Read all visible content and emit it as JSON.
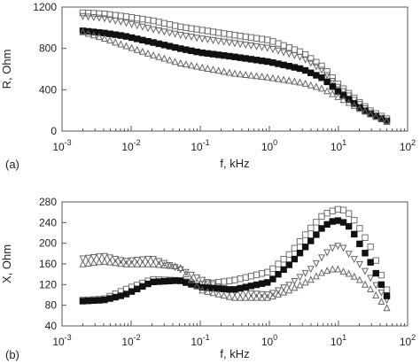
{
  "chart_data": [
    {
      "type": "scatter",
      "panel_label": "(a)",
      "xlabel": "f, kHz",
      "ylabel": "R, Ohm",
      "xscale": "log",
      "xlim": [
        0.001,
        100
      ],
      "ylim": [
        0,
        1200
      ],
      "xticks": [
        {
          "value": 0.001,
          "base": "10",
          "exp": "-3"
        },
        {
          "value": 0.01,
          "base": "10",
          "exp": "-2"
        },
        {
          "value": 0.1,
          "base": "10",
          "exp": "-1"
        },
        {
          "value": 1,
          "base": "10",
          "exp": "0"
        },
        {
          "value": 10,
          "base": "10",
          "exp": "1"
        },
        {
          "value": 100,
          "base": "10",
          "exp": "2"
        }
      ],
      "yticks": [
        "0",
        "400",
        "800",
        "1200"
      ],
      "grid": false,
      "series": [
        {
          "marker": "open-square",
          "x": [
            0.002,
            0.004,
            0.008,
            0.02,
            0.05,
            0.1,
            0.3,
            1,
            3,
            6,
            10,
            20,
            30,
            50
          ],
          "y": [
            1145,
            1135,
            1110,
            1070,
            1010,
            980,
            930,
            880,
            760,
            620,
            450,
            280,
            190,
            120
          ]
        },
        {
          "marker": "open-triangle-down",
          "x": [
            0.002,
            0.004,
            0.008,
            0.02,
            0.05,
            0.1,
            0.3,
            1,
            3,
            6,
            10,
            20,
            30,
            50
          ],
          "y": [
            1110,
            1090,
            1050,
            985,
            930,
            895,
            850,
            800,
            710,
            580,
            420,
            260,
            170,
            100
          ]
        },
        {
          "marker": "filled-square",
          "x": [
            0.002,
            0.004,
            0.008,
            0.02,
            0.05,
            0.1,
            0.3,
            1,
            3,
            6,
            10,
            20,
            30,
            50
          ],
          "y": [
            970,
            950,
            920,
            860,
            800,
            760,
            720,
            670,
            600,
            510,
            380,
            230,
            160,
            95
          ]
        },
        {
          "marker": "open-triangle-up",
          "x": [
            0.002,
            0.004,
            0.008,
            0.02,
            0.05,
            0.1,
            0.3,
            1,
            3,
            6,
            10,
            20,
            30,
            50
          ],
          "y": [
            960,
            900,
            830,
            740,
            660,
            620,
            560,
            520,
            470,
            410,
            330,
            220,
            160,
            100
          ]
        }
      ]
    },
    {
      "type": "scatter",
      "panel_label": "(b)",
      "xlabel": "f, kHz",
      "ylabel": "X, Ohm",
      "xscale": "log",
      "xlim": [
        0.001,
        100
      ],
      "ylim": [
        40,
        280
      ],
      "xticks": [
        {
          "value": 0.001,
          "base": "10",
          "exp": "-3"
        },
        {
          "value": 0.01,
          "base": "10",
          "exp": "-2"
        },
        {
          "value": 0.1,
          "base": "10",
          "exp": "-1"
        },
        {
          "value": 1,
          "base": "10",
          "exp": "0"
        },
        {
          "value": 10,
          "base": "10",
          "exp": "1"
        },
        {
          "value": 100,
          "base": "10",
          "exp": "2"
        }
      ],
      "yticks": [
        "40",
        "80",
        "120",
        "160",
        "200",
        "240",
        "280"
      ],
      "grid": false,
      "series": [
        {
          "marker": "open-square",
          "x": [
            0.002,
            0.004,
            0.008,
            0.02,
            0.05,
            0.1,
            0.3,
            1,
            2,
            4,
            6,
            8,
            10,
            12,
            15,
            20,
            30,
            50
          ],
          "y": [
            90,
            92,
            110,
            130,
            128,
            120,
            128,
            145,
            180,
            230,
            255,
            262,
            266,
            264,
            255,
            230,
            190,
            110
          ]
        },
        {
          "marker": "open-triangle-down",
          "x": [
            0.002,
            0.004,
            0.008,
            0.02,
            0.05,
            0.1,
            0.3,
            1,
            2,
            4,
            6,
            8,
            10,
            12,
            15,
            20,
            30,
            50
          ],
          "y": [
            170,
            175,
            165,
            170,
            150,
            130,
            105,
            100,
            120,
            150,
            175,
            190,
            195,
            190,
            175,
            160,
            130,
            90
          ]
        },
        {
          "marker": "filled-square",
          "x": [
            0.002,
            0.004,
            0.008,
            0.02,
            0.05,
            0.1,
            0.3,
            1,
            2,
            4,
            6,
            8,
            10,
            12,
            15,
            20,
            30,
            50
          ],
          "y": [
            88,
            90,
            100,
            125,
            128,
            115,
            110,
            125,
            160,
            205,
            232,
            242,
            244,
            240,
            230,
            200,
            160,
            98
          ]
        },
        {
          "marker": "open-triangle-up",
          "x": [
            0.002,
            0.004,
            0.008,
            0.02,
            0.05,
            0.1,
            0.3,
            1,
            2,
            4,
            6,
            8,
            10,
            12,
            15,
            20,
            30,
            50
          ],
          "y": [
            160,
            165,
            160,
            160,
            155,
            110,
            95,
            95,
            110,
            130,
            145,
            150,
            150,
            145,
            140,
            130,
            110,
            75
          ]
        }
      ]
    }
  ]
}
